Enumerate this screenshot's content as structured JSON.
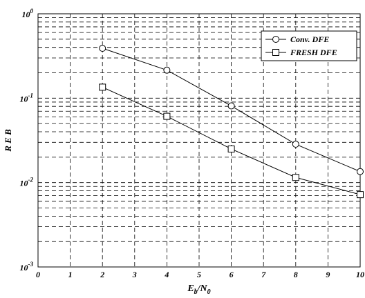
{
  "chart_data": {
    "type": "line",
    "xlabel": "E",
    "xlabel_sub1": "b",
    "xlabel_mid": "/N",
    "xlabel_sub2": "0",
    "ylabel": "R E B",
    "xlim": [
      0,
      10
    ],
    "ylim": [
      0.001,
      1
    ],
    "yscale": "log",
    "x_ticks": [
      "0",
      "1",
      "2",
      "3",
      "4",
      "5",
      "6",
      "7",
      "8",
      "9",
      "10"
    ],
    "y_ticks": [
      {
        "base": "10",
        "exp": "0"
      },
      {
        "base": "10",
        "exp": "-1"
      },
      {
        "base": "10",
        "exp": "-2"
      },
      {
        "base": "10",
        "exp": "-3"
      }
    ],
    "grid": true,
    "legend_position": "top-right",
    "series": [
      {
        "name": "Conv. DFE",
        "marker": "circle",
        "x": [
          2,
          4,
          6,
          8,
          10
        ],
        "y": [
          0.39,
          0.215,
          0.081,
          0.0285,
          0.0135
        ]
      },
      {
        "name": "FRESH DFE",
        "marker": "square",
        "x": [
          2,
          4,
          6,
          8,
          10
        ],
        "y": [
          0.135,
          0.061,
          0.025,
          0.0115,
          0.0072
        ]
      }
    ]
  }
}
